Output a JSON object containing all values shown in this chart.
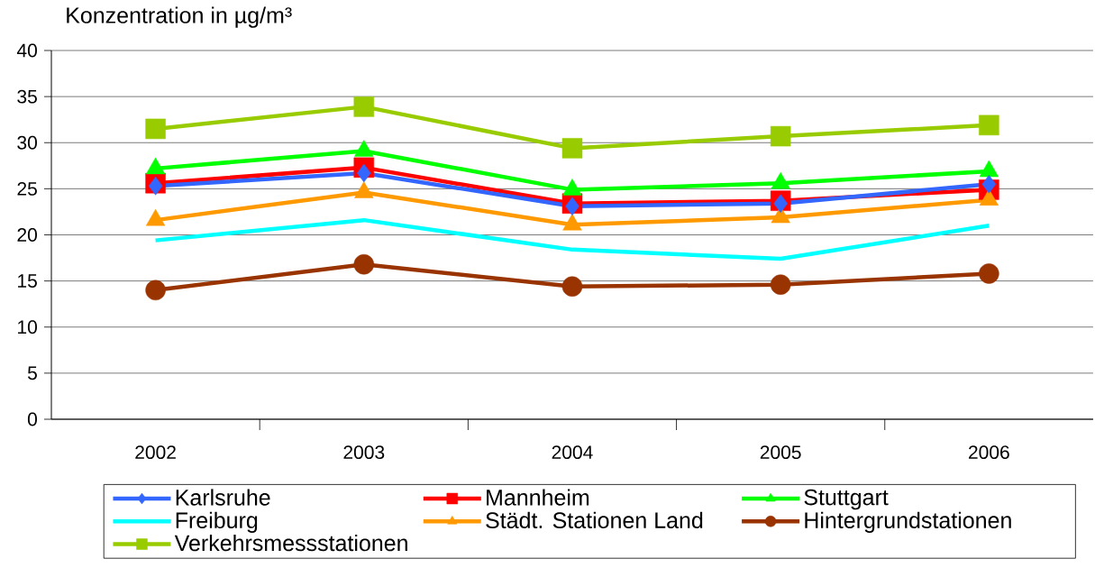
{
  "chart_data": {
    "type": "line",
    "ylabel": "Konzentration in µg/m³",
    "categories": [
      "2002",
      "2003",
      "2004",
      "2005",
      "2006"
    ],
    "series": [
      {
        "name": "Karlsruhe",
        "color": "#3366ff",
        "marker": "diamond",
        "values": [
          25.3,
          26.7,
          23.1,
          23.4,
          25.5
        ]
      },
      {
        "name": "Mannheim",
        "color": "#ff0000",
        "marker": "square",
        "values": [
          25.6,
          27.3,
          23.4,
          23.7,
          24.9
        ]
      },
      {
        "name": "Stuttgart",
        "color": "#00ff00",
        "marker": "triangle",
        "values": [
          27.2,
          29.1,
          24.9,
          25.6,
          26.9
        ]
      },
      {
        "name": "Freiburg",
        "color": "#00ffff",
        "marker": "none",
        "values": [
          19.4,
          21.6,
          18.4,
          17.4,
          21.0
        ]
      },
      {
        "name": "Städt. Stationen Land",
        "color": "#ff9900",
        "marker": "triangle",
        "values": [
          21.6,
          24.6,
          21.1,
          21.9,
          23.8
        ]
      },
      {
        "name": "Hintergrundstationen",
        "color": "#993300",
        "marker": "circle",
        "values": [
          14.0,
          16.8,
          14.4,
          14.6,
          15.8
        ]
      },
      {
        "name": "Verkehrsmessstationen",
        "color": "#99cc00",
        "marker": "square",
        "values": [
          31.5,
          33.9,
          29.4,
          30.7,
          31.9
        ]
      }
    ],
    "ylim": [
      0,
      40
    ],
    "yticks": [
      0,
      5,
      10,
      15,
      20,
      25,
      30,
      35,
      40
    ],
    "grid": "y",
    "legend": "bottom",
    "line_style": "solid"
  }
}
